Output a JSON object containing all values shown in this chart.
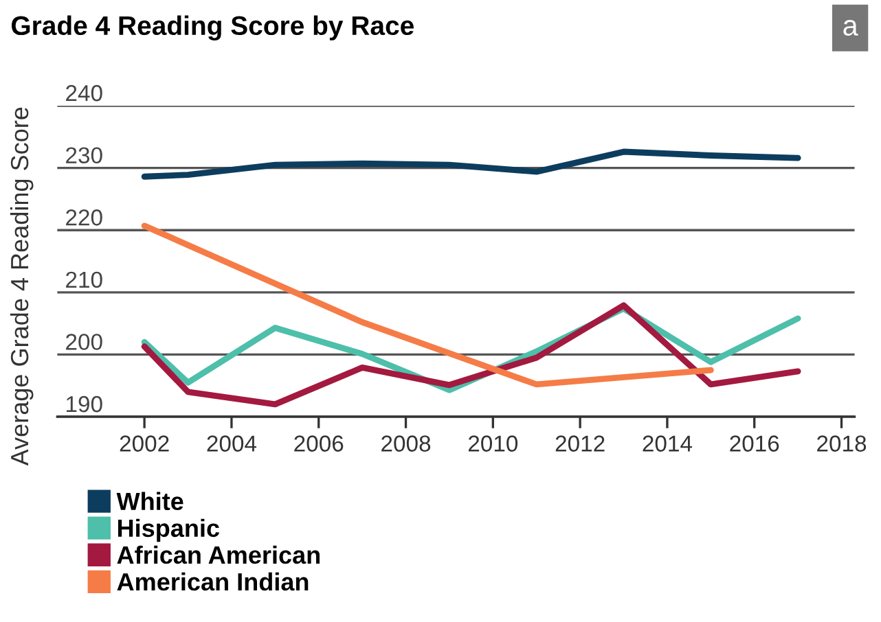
{
  "chart_data": {
    "type": "line",
    "title": "Grade 4 Reading Score by Race",
    "ylabel": "Average Grade 4 Reading Score",
    "annotations": [
      "a"
    ],
    "xlim": [
      2000,
      2018.3
    ],
    "xticks": [
      2002,
      2004,
      2006,
      2008,
      2010,
      2012,
      2014,
      2016,
      2018
    ],
    "ylim": [
      190,
      240
    ],
    "yticks": [
      190,
      200,
      210,
      220,
      230,
      240
    ],
    "grid": "y",
    "legend": "bottom left",
    "marker": "none",
    "line_style": "solid",
    "series": [
      {
        "name": "White",
        "color": "#0d3d5e",
        "x": [
          2002,
          2003,
          2005,
          2007,
          2009,
          2011,
          2013,
          2015,
          2017
        ],
        "values": [
          228.6,
          228.9,
          230.5,
          230.7,
          230.5,
          229.4,
          232.6,
          232.0,
          231.6
        ]
      },
      {
        "name": "Hispanic",
        "color": "#4dbfaa",
        "x": [
          2002,
          2003,
          2005,
          2007,
          2009,
          2011,
          2013,
          2015,
          2017
        ],
        "values": [
          202.0,
          195.5,
          204.3,
          200.1,
          194.3,
          200.5,
          207.4,
          198.8,
          205.8
        ]
      },
      {
        "name": "African American",
        "color": "#a3193f",
        "x": [
          2002,
          2003,
          2005,
          2007,
          2009,
          2011,
          2013,
          2015,
          2017
        ],
        "values": [
          201.3,
          194.0,
          192.0,
          197.9,
          195.1,
          199.5,
          207.9,
          195.2,
          197.3
        ]
      },
      {
        "name": "American Indian",
        "color": "#f57c47",
        "x": [
          2002,
          2007,
          2011,
          2015
        ],
        "values": [
          220.7,
          205.2,
          195.2,
          197.5
        ]
      }
    ]
  }
}
